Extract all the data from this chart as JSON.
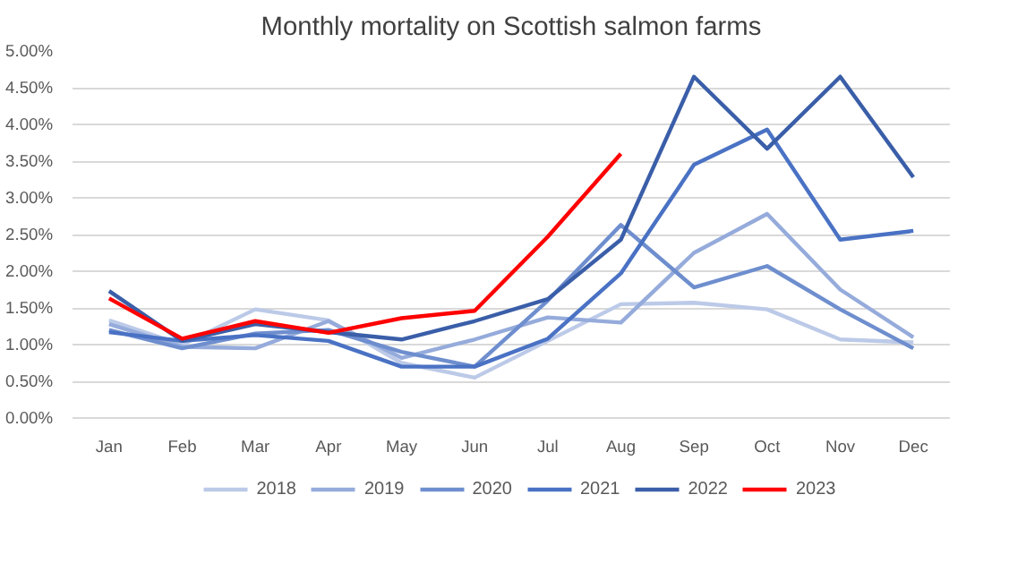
{
  "chart_data": {
    "type": "line",
    "title": "Monthly mortality on Scottish salmon farms",
    "categories": [
      "Jan",
      "Feb",
      "Mar",
      "Apr",
      "May",
      "Jun",
      "Jul",
      "Aug",
      "Sep",
      "Oct",
      "Nov",
      "Dec"
    ],
    "series": [
      {
        "name": "2018",
        "color": "#bccae8",
        "values": [
          1.33,
          1.0,
          1.48,
          1.33,
          0.75,
          0.55,
          1.05,
          1.55,
          1.57,
          1.48,
          1.07,
          1.03
        ]
      },
      {
        "name": "2019",
        "color": "#95abdb",
        "values": [
          1.28,
          0.97,
          0.95,
          1.32,
          0.82,
          1.07,
          1.37,
          1.3,
          2.25,
          2.78,
          1.75,
          1.1
        ]
      },
      {
        "name": "2020",
        "color": "#6e8ece",
        "values": [
          1.2,
          0.95,
          1.15,
          1.2,
          0.9,
          0.7,
          1.6,
          2.63,
          1.78,
          2.07,
          1.48,
          0.95
        ]
      },
      {
        "name": "2021",
        "color": "#4a72c4",
        "values": [
          1.17,
          1.05,
          1.13,
          1.05,
          0.7,
          0.7,
          1.08,
          1.97,
          3.45,
          3.93,
          2.43,
          2.55
        ]
      },
      {
        "name": "2022",
        "color": "#3a5ea8",
        "values": [
          1.73,
          1.05,
          1.28,
          1.17,
          1.07,
          1.32,
          1.62,
          2.43,
          4.65,
          3.67,
          4.65,
          3.28
        ]
      },
      {
        "name": "2023",
        "color": "#ff0000",
        "values": [
          1.63,
          1.08,
          1.32,
          1.16,
          1.36,
          1.46,
          2.47,
          3.6,
          null,
          null,
          null,
          null
        ]
      }
    ],
    "ylim": [
      0,
      5
    ],
    "yticks": [
      {
        "value": 0,
        "label": "0.00%"
      },
      {
        "value": 0.5,
        "label": "0.50%"
      },
      {
        "value": 1,
        "label": "1.00%"
      },
      {
        "value": 1.5,
        "label": "1.50%"
      },
      {
        "value": 2,
        "label": "2.00%"
      },
      {
        "value": 2.5,
        "label": "2.50%"
      },
      {
        "value": 3,
        "label": "3.00%"
      },
      {
        "value": 3.5,
        "label": "3.50%"
      },
      {
        "value": 4,
        "label": "4.00%"
      },
      {
        "value": 4.5,
        "label": "4.50%"
      },
      {
        "value": 5,
        "label": "5.00%"
      }
    ],
    "grid": "y",
    "legend": "bottom",
    "marker": "none",
    "line_style": "solid"
  }
}
